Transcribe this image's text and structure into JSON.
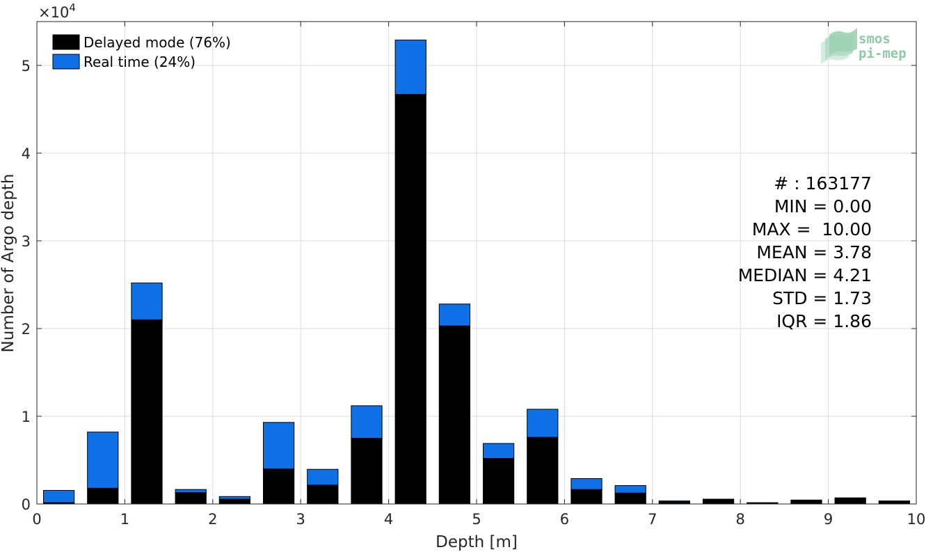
{
  "chart_data": {
    "type": "bar",
    "stacked": true,
    "xlabel": "Depth [m]",
    "ylabel": "Number of Argo depth",
    "y_multiplier": "×10",
    "y_multiplier_exp": "4",
    "xlim": [
      0,
      10
    ],
    "ylim": [
      0,
      55000
    ],
    "xticks": [
      0,
      1,
      2,
      3,
      4,
      5,
      6,
      7,
      8,
      9,
      10
    ],
    "yticks": [
      0,
      10000,
      20000,
      30000,
      40000,
      50000
    ],
    "ytick_labels": [
      "0",
      "1",
      "2",
      "3",
      "4",
      "5"
    ],
    "grid": true,
    "bin_width": 0.5,
    "bar_width": 0.35,
    "bin_centers": [
      0.25,
      0.75,
      1.25,
      1.75,
      2.25,
      2.75,
      3.25,
      3.75,
      4.25,
      4.75,
      5.25,
      5.75,
      6.25,
      6.75,
      7.25,
      7.75,
      8.25,
      8.75,
      9.25,
      9.75
    ],
    "series": [
      {
        "name": "Delayed mode (76%)",
        "color": "#000000",
        "values": [
          150,
          1800,
          21000,
          1300,
          550,
          4000,
          2150,
          7500,
          46700,
          20300,
          5200,
          7600,
          1650,
          1250,
          250,
          550,
          150,
          450,
          700,
          350
        ]
      },
      {
        "name": "Real time (24%)",
        "color": "#1070e6",
        "values": [
          1400,
          6400,
          4200,
          350,
          300,
          5300,
          1800,
          3700,
          6200,
          2500,
          1700,
          3200,
          1250,
          850,
          100,
          0,
          0,
          0,
          0,
          0
        ]
      }
    ],
    "legend_position": "top-left",
    "stats": [
      "# : 163177",
      "MIN = 0.00",
      "MAX =  10.00",
      "MEAN = 3.78",
      "MEDIAN = 4.21",
      "STD = 1.73",
      "IQR = 1.86"
    ]
  },
  "logo": {
    "line1": "smos",
    "line2": "pi-mep",
    "color": "#8cc9a8"
  }
}
